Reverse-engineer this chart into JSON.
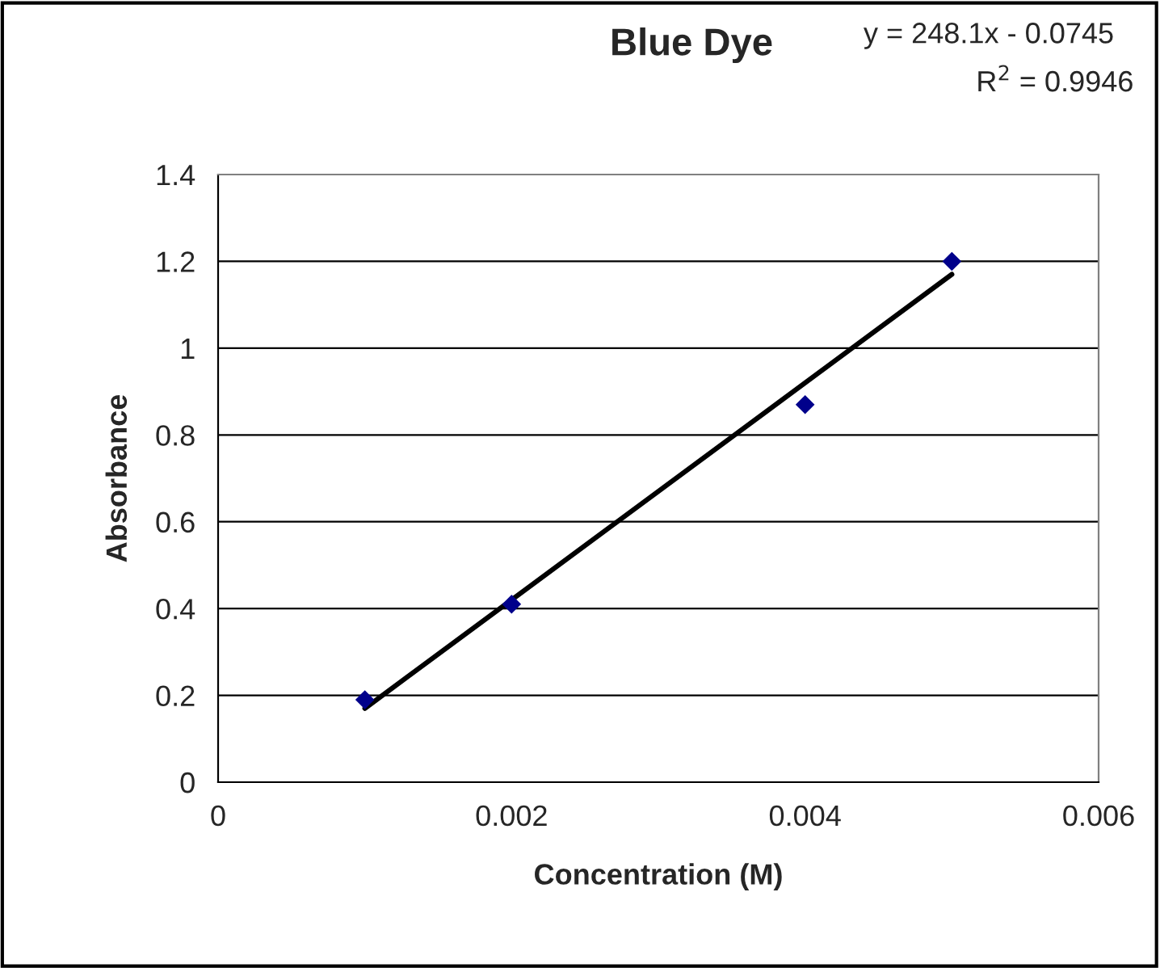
{
  "chart_data": {
    "type": "scatter",
    "title": "Blue Dye",
    "xlabel": "Concentration (M)",
    "ylabel": "Absorbance",
    "annotations": [
      "y = 248.1x - 0.0745",
      "R$^{2}$ = 0.9946"
    ],
    "x": [
      0.001,
      0.002,
      0.004,
      0.005
    ],
    "series": [
      {
        "color": "#00008b",
        "marker": "diamond",
        "values": [
          0.19,
          0.41,
          0.87,
          1.2
        ]
      },
      {
        "type": "line",
        "color": "#000000",
        "marker": "none",
        "line_style": "solid",
        "x": [
          0.001,
          0.005
        ],
        "values": [
          0.17,
          1.17
        ]
      }
    ],
    "xlim": [
      0,
      0.006
    ],
    "xticks": [
      0,
      0.002,
      0.004,
      0.006
    ],
    "ylim": [
      0,
      1.4
    ],
    "yticks": [
      0,
      0.2,
      0.4,
      0.6,
      0.8,
      1,
      1.2,
      1.4
    ],
    "grid": "y",
    "legend": false
  }
}
